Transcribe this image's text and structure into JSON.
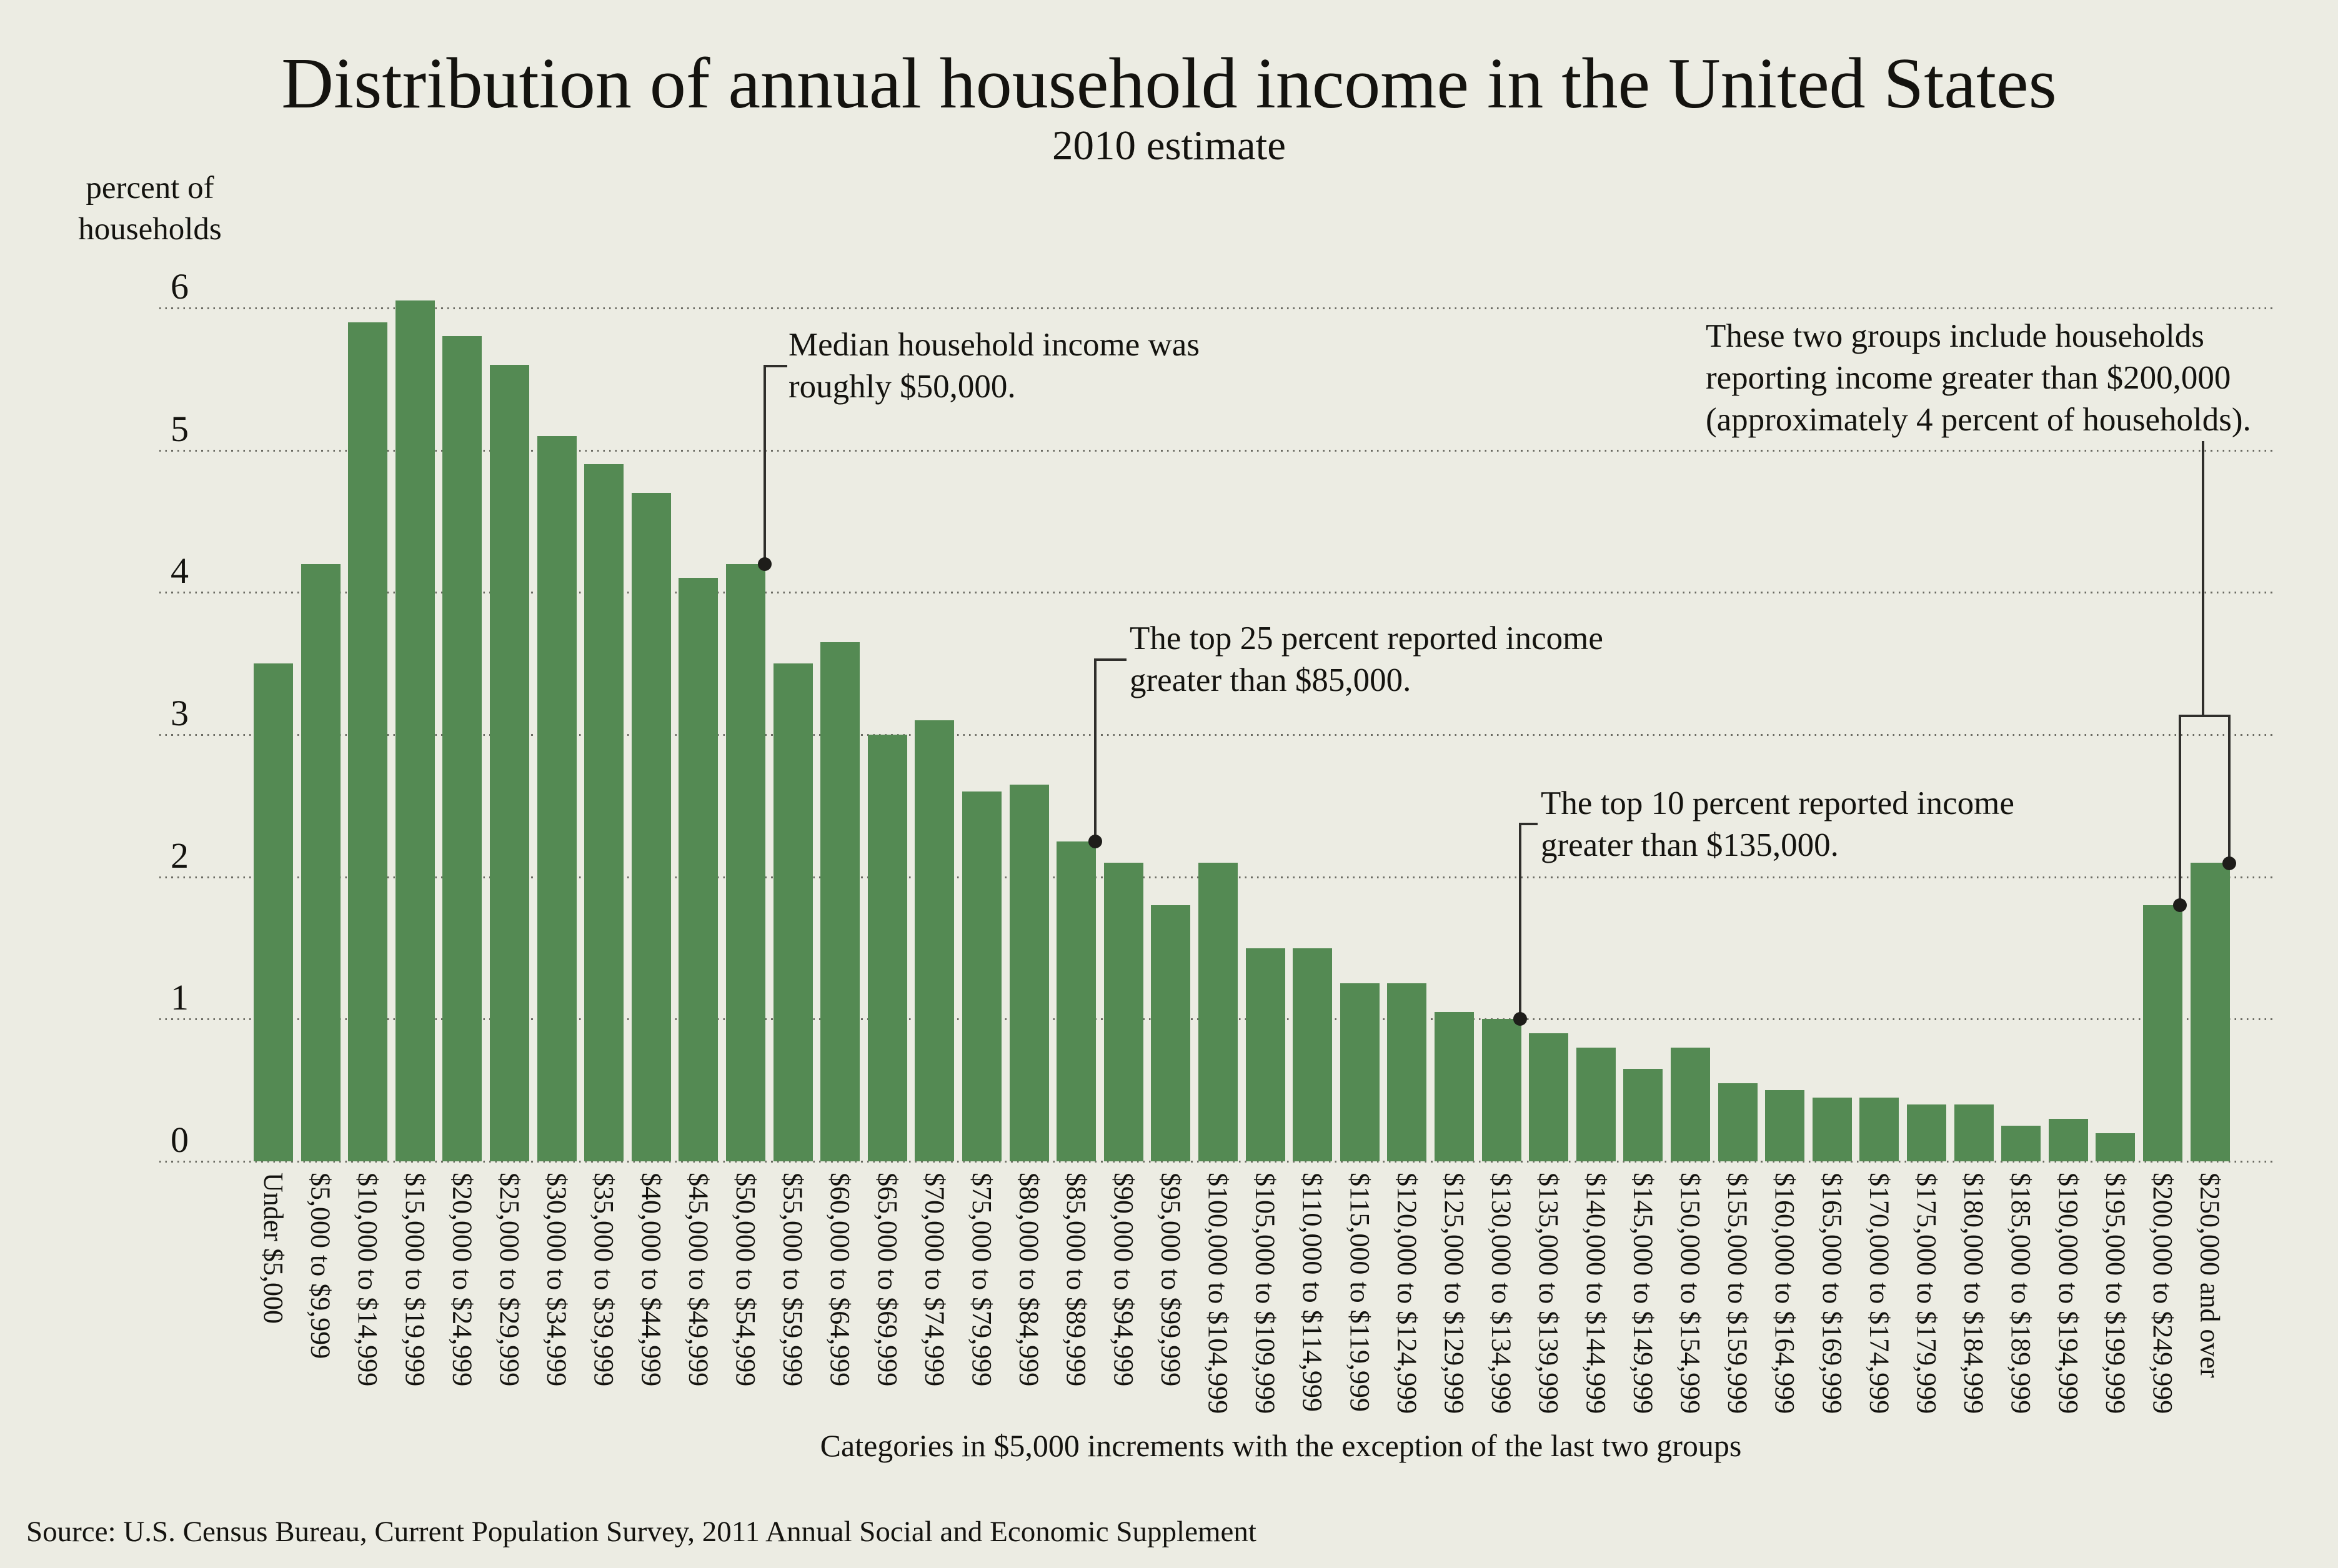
{
  "title": "Distribution of annual household income in the United States",
  "subtitle": "2010 estimate",
  "y_axis": {
    "label_lines": [
      "percent of",
      "households"
    ],
    "ticks": [
      6,
      5,
      4,
      3,
      2,
      1,
      0
    ]
  },
  "x_axis": {
    "caption": "Categories in $5,000 increments with the exception of the last two groups"
  },
  "source": "Source: U.S. Census Bureau, Current Population Survey, 2011 Annual Social and Economic Supplement",
  "annotations": [
    {
      "id": "median",
      "lines": [
        "Median household income was",
        "roughly $50,000."
      ],
      "target_category": "$50,000 to $54,999"
    },
    {
      "id": "top25",
      "lines": [
        "The top 25 percent reported income",
        "greater than $85,000."
      ],
      "target_category": "$85,000 to $89,999"
    },
    {
      "id": "top10",
      "lines": [
        "The top 10 percent reported income",
        "greater than $135,000."
      ],
      "target_category": "$130,000 to $134,999"
    },
    {
      "id": "top-two-groups",
      "lines": [
        "These two groups include households",
        "reporting income greater than $200,000",
        "(approximately 4 percent of households)."
      ],
      "target_category": "$200,000 to $249,999 and $250,000 and over"
    }
  ],
  "colors": {
    "background": "#ecece3",
    "bar": "#548a53",
    "text": "#14130f",
    "grid_dot": "#6a6a62",
    "annotation_line": "#2f2e2b"
  },
  "chart_data": {
    "type": "bar",
    "title": "Distribution of annual household income in the United States",
    "subtitle": "2010 estimate",
    "xlabel": "Categories in $5,000 increments with the exception of the last two groups",
    "ylabel": "percent of households",
    "ylim": [
      0,
      6
    ],
    "yticks": [
      0,
      1,
      2,
      3,
      4,
      5,
      6
    ],
    "grid": "horizontal dotted",
    "legend": "none",
    "categories": [
      "Under $5,000",
      "$5,000 to $9,999",
      "$10,000 to $14,999",
      "$15,000 to $19,999",
      "$20,000 to $24,999",
      "$25,000 to $29,999",
      "$30,000 to $34,999",
      "$35,000 to $39,999",
      "$40,000 to $44,999",
      "$45,000 to $49,999",
      "$50,000 to $54,999",
      "$55,000 to $59,999",
      "$60,000 to $64,999",
      "$65,000 to $69,999",
      "$70,000 to $74,999",
      "$75,000 to $79,999",
      "$80,000 to $84,999",
      "$85,000 to $89,999",
      "$90,000 to $94,999",
      "$95,000 to $99,999",
      "$100,000 to $104,999",
      "$105,000 to $109,999",
      "$110,000 to $114,999",
      "$115,000 to $119,999",
      "$120,000 to $124,999",
      "$125,000 to $129,999",
      "$130,000 to $134,999",
      "$135,000 to $139,999",
      "$140,000 to $144,999",
      "$145,000 to $149,999",
      "$150,000 to $154,999",
      "$155,000 to $159,999",
      "$160,000 to $164,999",
      "$165,000 to $169,999",
      "$170,000 to $174,999",
      "$175,000 to $179,999",
      "$180,000 to $184,999",
      "$185,000 to $189,999",
      "$190,000 to $194,999",
      "$195,000 to $199,999",
      "$200,000 to $249,999",
      "$250,000 and over"
    ],
    "values": [
      3.5,
      4.2,
      5.9,
      6.05,
      5.8,
      5.6,
      5.1,
      4.9,
      4.7,
      4.1,
      4.2,
      3.5,
      3.65,
      3.0,
      3.1,
      2.6,
      2.65,
      2.25,
      2.1,
      1.8,
      2.1,
      1.5,
      1.5,
      1.25,
      1.25,
      1.05,
      1.0,
      0.9,
      0.8,
      0.65,
      0.8,
      0.55,
      0.5,
      0.45,
      0.45,
      0.4,
      0.4,
      0.25,
      0.3,
      0.2,
      1.8,
      2.1
    ]
  }
}
